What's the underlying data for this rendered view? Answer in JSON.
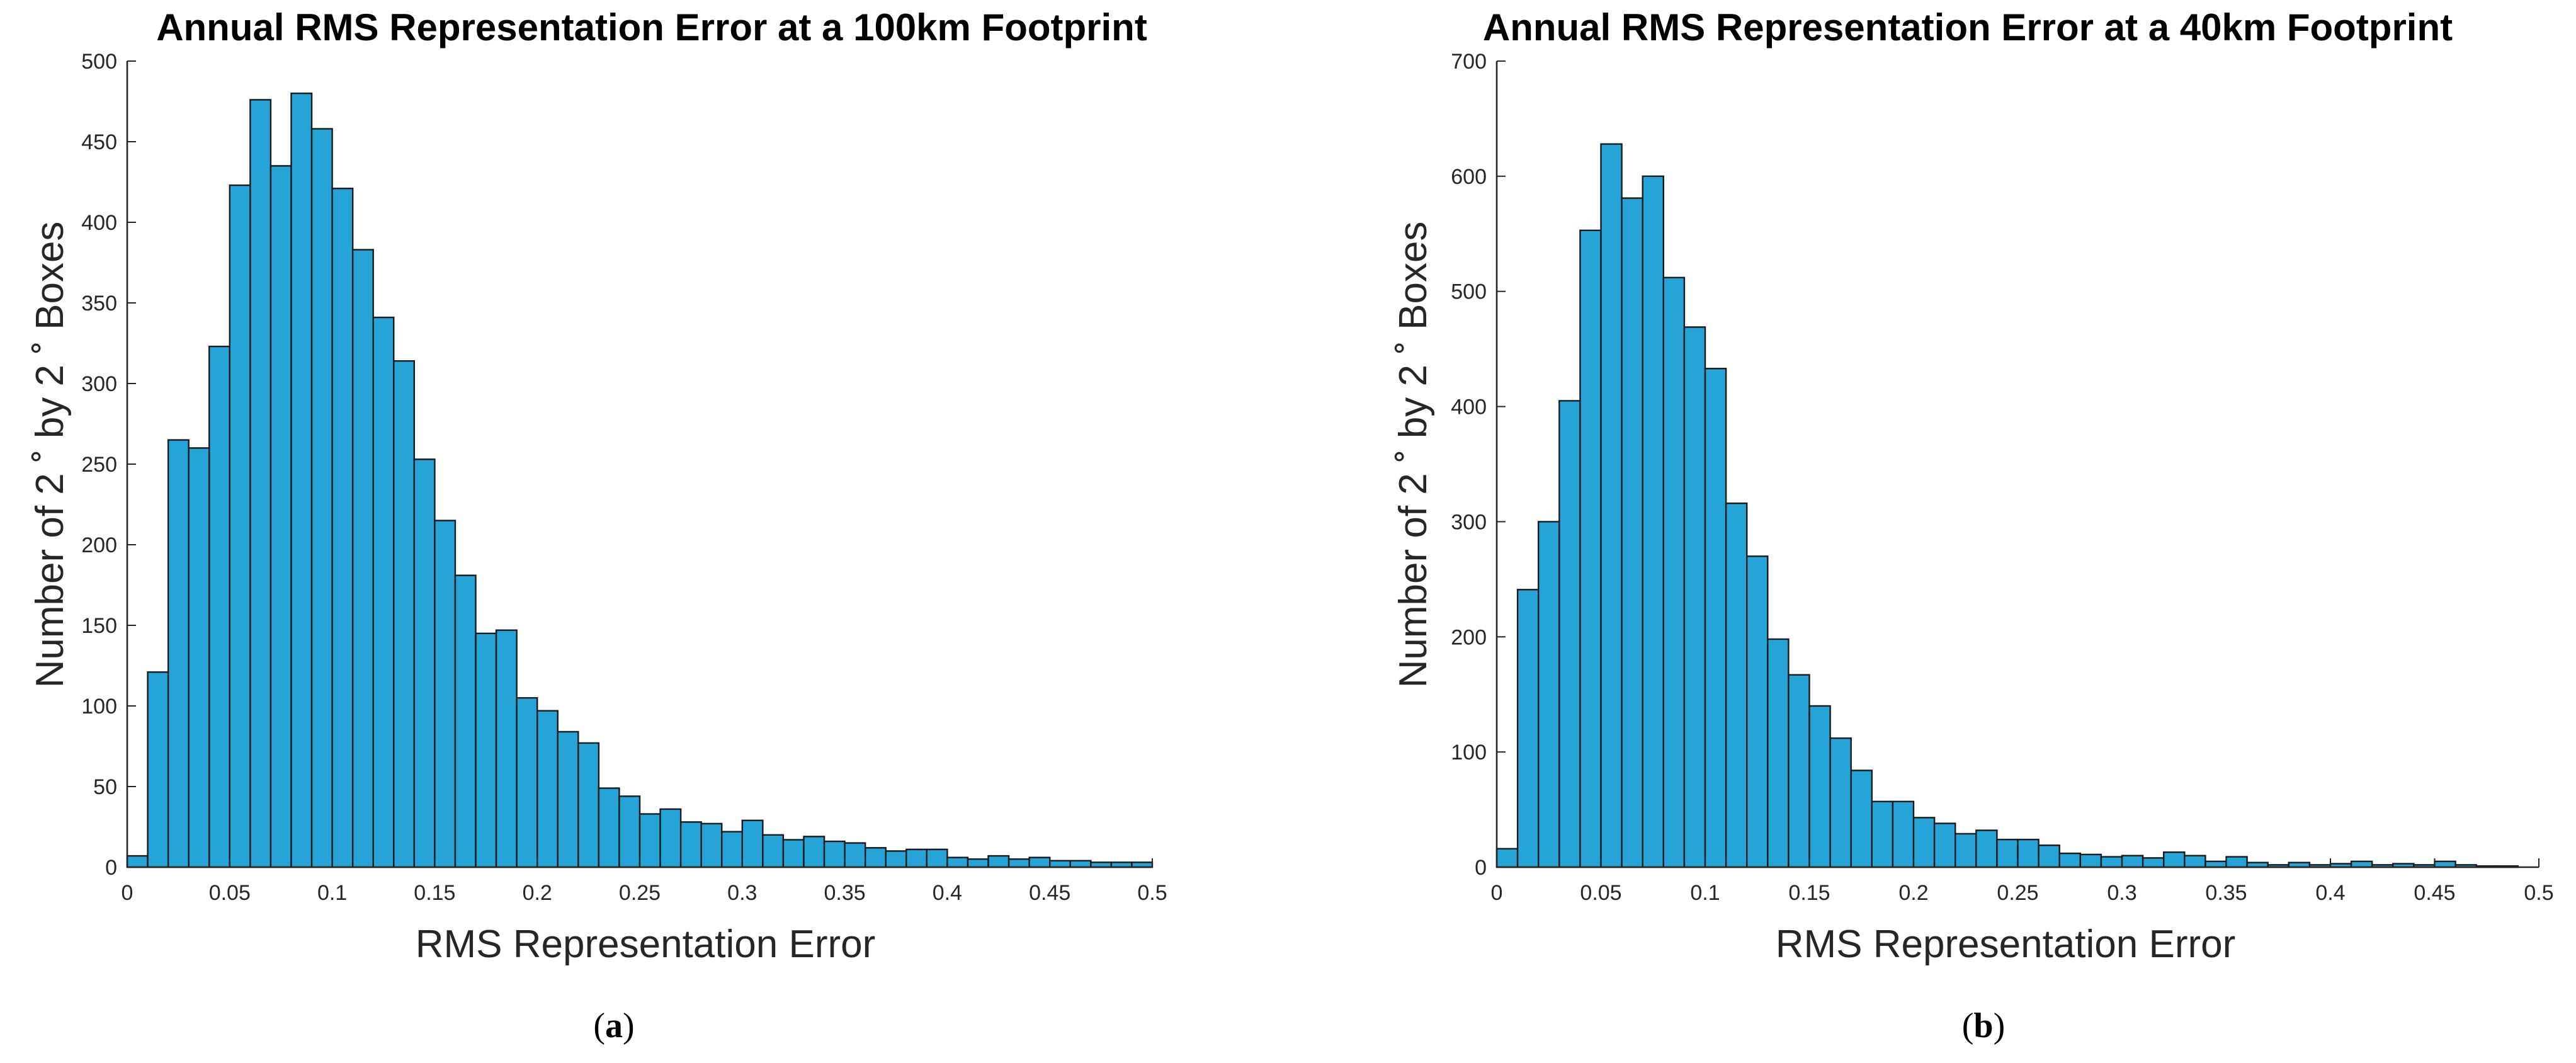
{
  "chart_data": [
    {
      "type": "bar",
      "panel_label": "a",
      "title": "Annual RMS Representation Error at a 100km Footprint",
      "xlabel": "RMS Representation Error",
      "ylabel": "Number of 2 ˚ by 2 ˚ Boxes",
      "xlim": [
        0,
        0.5
      ],
      "ylim": [
        0,
        500
      ],
      "xticks": [
        "0",
        "0.05",
        "0.1",
        "0.15",
        "0.2",
        "0.25",
        "0.3",
        "0.35",
        "0.4",
        "0.45",
        "0.5"
      ],
      "yticks": [
        "0",
        "50",
        "100",
        "150",
        "200",
        "250",
        "300",
        "350",
        "400",
        "450",
        "500"
      ],
      "bin_width": 0.01,
      "bar_color": "#26a4d8",
      "values": [
        7,
        121,
        265,
        260,
        323,
        423,
        476,
        435,
        480,
        458,
        421,
        383,
        341,
        314,
        253,
        215,
        181,
        145,
        147,
        105,
        97,
        84,
        77,
        49,
        44,
        33,
        36,
        28,
        27,
        22,
        29,
        20,
        17,
        19,
        16,
        15,
        12,
        10,
        11,
        11,
        6,
        5,
        7,
        5,
        6,
        4,
        4,
        3,
        3,
        3
      ]
    },
    {
      "type": "bar",
      "panel_label": "b",
      "title": "Annual RMS Representation Error at a 40km Footprint",
      "xlabel": "RMS Representation Error",
      "ylabel": "Number of 2 ˚ by 2 ˚ Boxes",
      "xlim": [
        0,
        0.5
      ],
      "ylim": [
        0,
        700
      ],
      "xticks": [
        "0",
        "0.05",
        "0.1",
        "0.15",
        "0.2",
        "0.25",
        "0.3",
        "0.35",
        "0.4",
        "0.45",
        "0.5"
      ],
      "yticks": [
        "0",
        "100",
        "200",
        "300",
        "400",
        "500",
        "600",
        "700"
      ],
      "bin_width": 0.01,
      "bar_color": "#26a4d8",
      "values": [
        16,
        241,
        300,
        405,
        553,
        628,
        581,
        600,
        512,
        469,
        433,
        316,
        270,
        198,
        167,
        140,
        112,
        84,
        57,
        57,
        43,
        38,
        29,
        32,
        24,
        24,
        19,
        12,
        11,
        9,
        10,
        8,
        13,
        10,
        5,
        9,
        4,
        2,
        4,
        2,
        3,
        5,
        2,
        3,
        2,
        5,
        2,
        1,
        1,
        0
      ]
    }
  ],
  "panel_labels": {
    "open": "(",
    "close": ")"
  }
}
